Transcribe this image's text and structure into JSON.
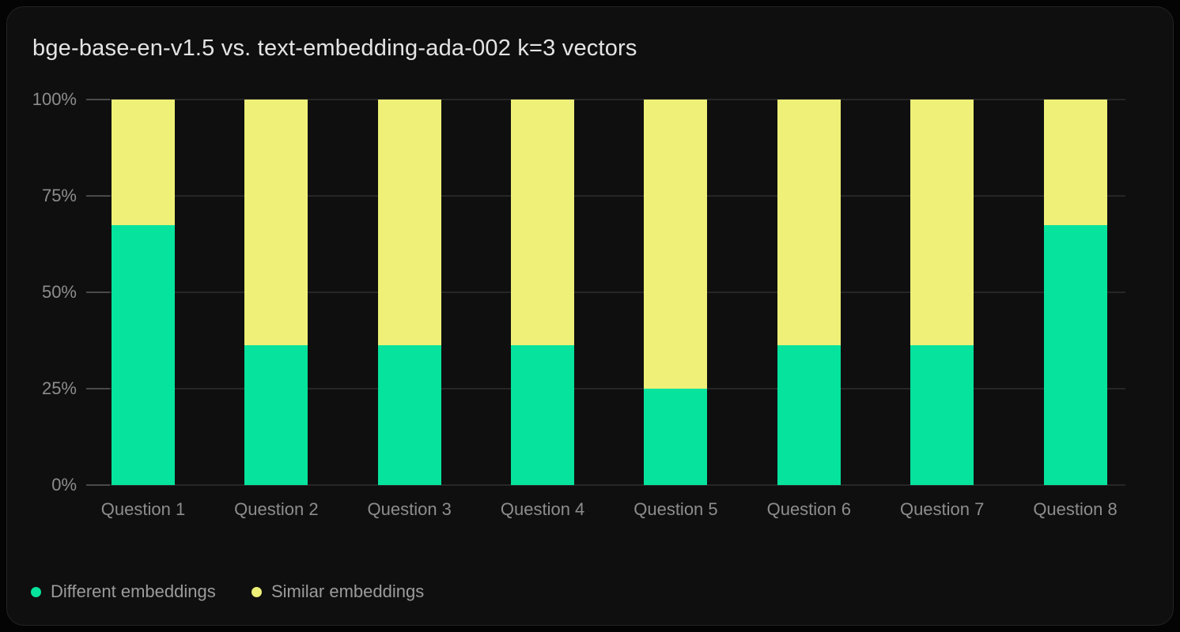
{
  "chart_data": {
    "type": "bar",
    "stacked": true,
    "title": "bge-base-en-v1.5 vs. text-embedding-ada-002 k=3 vectors",
    "categories": [
      "Question 1",
      "Question 2",
      "Question 3",
      "Question 4",
      "Question 5",
      "Question 6",
      "Question 7",
      "Question 8"
    ],
    "series": [
      {
        "name": "Different embeddings",
        "color": "#06e39d",
        "values": [
          67.5,
          36.3,
          36.3,
          36.3,
          25,
          36.3,
          36.3,
          67.5
        ]
      },
      {
        "name": "Similar embeddings",
        "color": "#eef077",
        "values": [
          32.5,
          63.7,
          63.7,
          63.7,
          75,
          63.7,
          63.7,
          32.5
        ]
      }
    ],
    "yticks": [
      {
        "value": 0,
        "label": "0%"
      },
      {
        "value": 25,
        "label": "25%"
      },
      {
        "value": 50,
        "label": "50%"
      },
      {
        "value": 75,
        "label": "75%"
      },
      {
        "value": 100,
        "label": "100%"
      }
    ],
    "ylim": [
      0,
      100
    ],
    "units": "%",
    "grid": true,
    "legend_position": "bottom-left"
  },
  "colors": {
    "page_background": "#040404",
    "card_background": "#0f0f0f",
    "gridline": "#262626",
    "title_text": "#e4e4e4",
    "axis_text": "#8d8d8d",
    "legend_text": "#9b9b9b"
  }
}
